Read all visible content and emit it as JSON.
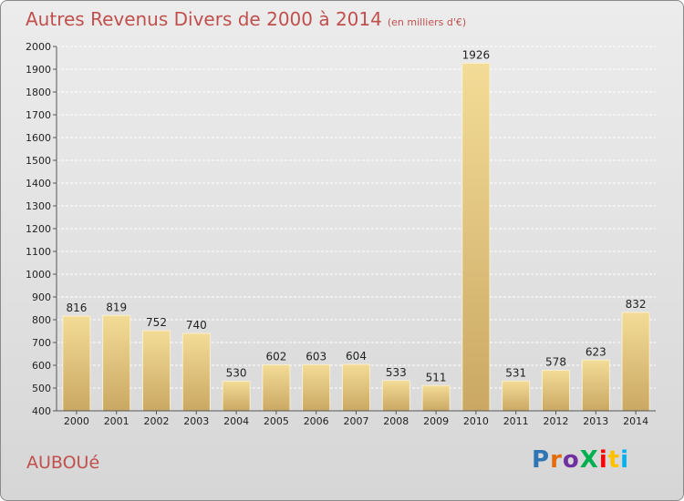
{
  "title": "Autres Revenus Divers de 2000 à 2014",
  "subtitle": "(en milliers d'€)",
  "place": "AUBOUé",
  "logo": {
    "text": "ProXiti",
    "colors": [
      "#2e75b6",
      "#e36c09",
      "#7030a0",
      "#00b050",
      "#ff0000",
      "#ffc000",
      "#00b0f0"
    ]
  },
  "chart_data": {
    "type": "bar",
    "categories": [
      "2000",
      "2001",
      "2002",
      "2003",
      "2004",
      "2005",
      "2006",
      "2007",
      "2008",
      "2009",
      "2010",
      "2011",
      "2012",
      "2013",
      "2014"
    ],
    "values": [
      816,
      819,
      752,
      740,
      530,
      602,
      603,
      604,
      533,
      511,
      1926,
      531,
      578,
      623,
      832
    ],
    "ylim": [
      400,
      2000
    ],
    "yticks": [
      400,
      500,
      600,
      700,
      800,
      900,
      1000,
      1100,
      1200,
      1300,
      1400,
      1500,
      1600,
      1700,
      1800,
      1900,
      2000
    ],
    "grid": true,
    "bar_color": "#e2c87f"
  }
}
